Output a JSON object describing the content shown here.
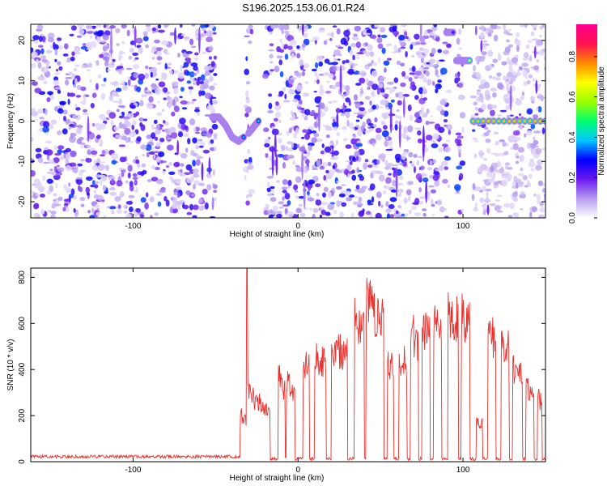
{
  "title": "S196.2025.153.06.01.R24",
  "chart_data": [
    {
      "type": "heatmap",
      "xlabel": "Height of straight line (km)",
      "ylabel": "Frequency (Hz)",
      "xlim": [
        -162,
        150
      ],
      "ylim": [
        -24,
        24
      ],
      "xticks": [
        -100,
        0,
        100
      ],
      "yticks": [
        -20,
        -10,
        0,
        10,
        20
      ],
      "colorbar": {
        "label": "Normalized spectral amplitude",
        "range": [
          0,
          0.96
        ],
        "ticks": [
          0,
          0.2,
          0.4,
          0.6,
          0.8
        ],
        "colors": [
          "#ffffff",
          "#b79cf0",
          "#6b17f0",
          "#0000ff",
          "#00c8ff",
          "#00ff70",
          "#9cff00",
          "#ffff00",
          "#ff8800",
          "#ff1050",
          "#ff0090"
        ]
      },
      "blank_regions_x": [
        [
          -50,
          -32
        ],
        [
          -28,
          -20
        ],
        [
          92,
          96
        ],
        [
          100,
          106
        ]
      ],
      "features": [
        {
          "x": [
            -52,
            -48,
            -44,
            -40,
            -36,
            -33
          ],
          "y": [
            1,
            1,
            -1,
            -4,
            -5,
            -4
          ],
          "level": 0.38
        },
        {
          "x": [
            -30,
            -28,
            -26,
            -24
          ],
          "y": [
            -3,
            -2,
            -1,
            0
          ],
          "level": 0.4
        },
        {
          "x": [
            90,
            92,
            94
          ],
          "y": [
            22,
            22,
            22
          ],
          "level": 0.25
        },
        {
          "x": [
            96,
            100,
            104
          ],
          "y": [
            15,
            15,
            15
          ],
          "level": 0.7
        },
        {
          "x": [
            106,
            150
          ],
          "y": [
            0,
            0
          ],
          "level": 0.75
        }
      ]
    },
    {
      "type": "line",
      "xlabel": "Height of straight line (km)",
      "ylabel": "SNR (10 * v/v)",
      "xlim": [
        -162,
        150
      ],
      "ylim": [
        0,
        840
      ],
      "xticks": [
        -100,
        0,
        100
      ],
      "yticks": [
        0,
        200,
        400,
        600,
        800
      ],
      "color": "#e8302c",
      "noise_floor": 22,
      "spike": {
        "x": -31,
        "y": 840
      },
      "segments": [
        {
          "x": [
            -35,
            -31
          ],
          "y": [
            205,
            180
          ]
        },
        {
          "x": [
            -31,
            -17
          ],
          "y": [
            300,
            220
          ]
        },
        {
          "x": [
            -12,
            -8
          ],
          "y": [
            390,
            300
          ]
        },
        {
          "x": [
            -7,
            -2
          ],
          "y": [
            340,
            300
          ]
        },
        {
          "x": [
            3,
            7
          ],
          "y": [
            430,
            400
          ]
        },
        {
          "x": [
            10,
            17
          ],
          "y": [
            470,
            420
          ]
        },
        {
          "x": [
            20,
            30
          ],
          "y": [
            500,
            470
          ]
        },
        {
          "x": [
            34,
            40
          ],
          "y": [
            610,
            590
          ]
        },
        {
          "x": [
            41,
            52
          ],
          "y": [
            700,
            600
          ]
        },
        {
          "x": [
            54,
            58
          ],
          "y": [
            440,
            420
          ]
        },
        {
          "x": [
            61,
            66
          ],
          "y": [
            450,
            420
          ]
        },
        {
          "x": [
            68,
            73
          ],
          "y": [
            560,
            520
          ]
        },
        {
          "x": [
            75,
            80
          ],
          "y": [
            600,
            560
          ]
        },
        {
          "x": [
            82,
            87
          ],
          "y": [
            630,
            600
          ]
        },
        {
          "x": [
            91,
            97
          ],
          "y": [
            640,
            620
          ]
        },
        {
          "x": [
            99,
            104
          ],
          "y": [
            630,
            600
          ]
        },
        {
          "x": [
            108,
            112
          ],
          "y": [
            180,
            160
          ]
        },
        {
          "x": [
            115,
            120
          ],
          "y": [
            560,
            520
          ]
        },
        {
          "x": [
            123,
            128
          ],
          "y": [
            520,
            490
          ]
        },
        {
          "x": [
            130,
            136
          ],
          "y": [
            400,
            360
          ]
        },
        {
          "x": [
            138,
            143
          ],
          "y": [
            330,
            300
          ]
        },
        {
          "x": [
            145,
            148
          ],
          "y": [
            280,
            260
          ]
        }
      ]
    }
  ]
}
